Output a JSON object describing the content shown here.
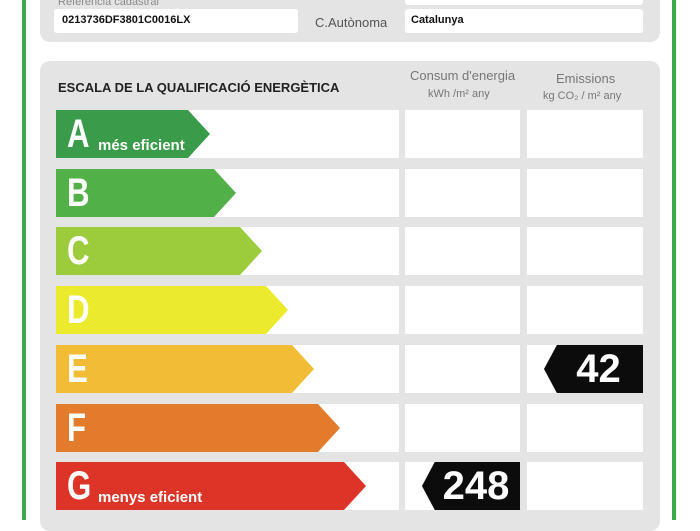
{
  "top_section": {
    "cadastral_label": "Referència cadastral",
    "cadastral_value": "0213736DF3801C0016LX",
    "region_label": "C.Autònoma",
    "region_value": "Catalunya"
  },
  "scale": {
    "title": "ESCALA DE LA QUALIFICACIÓ ENERGÈTICA",
    "col_consumption": "Consum d'energia",
    "col_consumption_unit": "kWh /m² any",
    "col_emissions": "Emissions",
    "col_emissions_unit": "kg CO₂ / m² any",
    "classes": [
      {
        "letter": "A",
        "label": "més eficient",
        "color": "#3a9b4a"
      },
      {
        "letter": "B",
        "label": "",
        "color": "#52b049"
      },
      {
        "letter": "C",
        "label": "",
        "color": "#9ccb3b"
      },
      {
        "letter": "D",
        "label": "",
        "color": "#ecea2d"
      },
      {
        "letter": "E",
        "label": "",
        "color": "#f2bc36"
      },
      {
        "letter": "F",
        "label": "",
        "color": "#e27b2c"
      },
      {
        "letter": "G",
        "label": "menys eficient",
        "color": "#dc3528"
      }
    ],
    "consumption_rating": {
      "value": "248",
      "class": "G"
    },
    "emissions_rating": {
      "value": "42",
      "class": "E"
    }
  }
}
